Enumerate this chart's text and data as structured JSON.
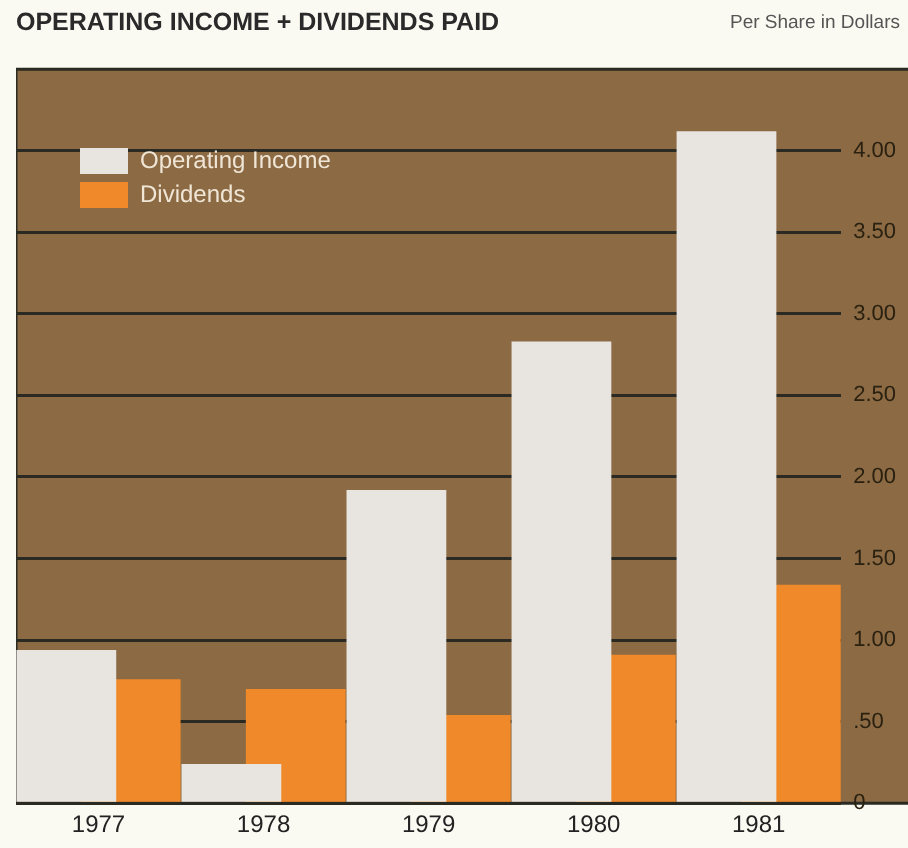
{
  "chart_data": {
    "type": "bar",
    "title": "OPERATING INCOME + DIVIDENDS PAID",
    "subtitle": "Per Share in Dollars",
    "categories": [
      "1977",
      "1978",
      "1979",
      "1980",
      "1981"
    ],
    "series": [
      {
        "name": "Operating Income",
        "color": "#e8e5e0",
        "values": [
          0.94,
          0.24,
          1.92,
          2.83,
          4.12
        ]
      },
      {
        "name": "Dividends",
        "color": "#f0892a",
        "values": [
          0.76,
          0.7,
          0.54,
          0.91,
          1.34
        ]
      }
    ],
    "ylim": [
      0,
      4.5
    ],
    "yticks": [
      {
        "value": 0,
        "label": "0"
      },
      {
        "value": 0.5,
        "label": ".50"
      },
      {
        "value": 1,
        "label": "1.00"
      },
      {
        "value": 1.5,
        "label": "1.50"
      },
      {
        "value": 2,
        "label": "2.00"
      },
      {
        "value": 2.5,
        "label": "2.50"
      },
      {
        "value": 3,
        "label": "3.00"
      },
      {
        "value": 3.5,
        "label": "3.50"
      },
      {
        "value": 4,
        "label": "4.00"
      }
    ],
    "grid": "y",
    "legend": "top left"
  }
}
